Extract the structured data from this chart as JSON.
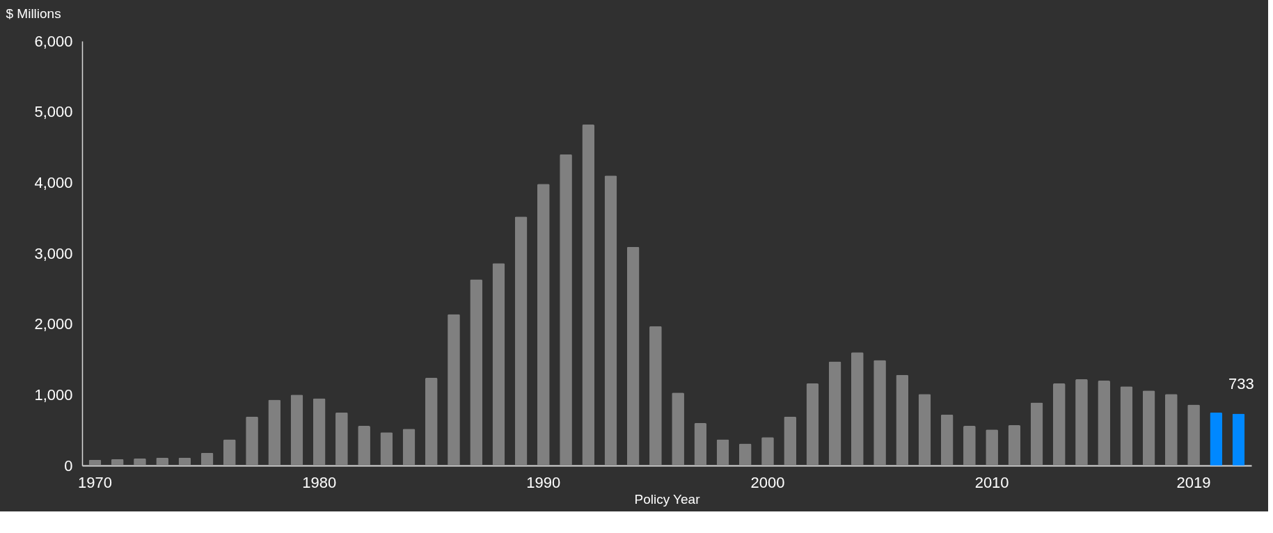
{
  "chart_data": {
    "type": "bar",
    "ylabel": "$ Millions",
    "xlabel": "Policy Year",
    "categories": [
      "1970",
      null,
      null,
      null,
      null,
      null,
      null,
      null,
      null,
      null,
      "1980",
      null,
      null,
      null,
      null,
      null,
      null,
      null,
      null,
      null,
      "1990",
      null,
      null,
      null,
      null,
      null,
      null,
      null,
      null,
      null,
      "2000",
      null,
      null,
      null,
      null,
      null,
      null,
      null,
      null,
      null,
      "2010",
      null,
      null,
      null,
      null,
      null,
      null,
      null,
      null,
      "2019",
      null,
      null
    ],
    "values": [
      80,
      90,
      100,
      110,
      110,
      180,
      370,
      690,
      930,
      1000,
      950,
      750,
      560,
      470,
      520,
      1240,
      2140,
      2630,
      2860,
      3520,
      3980,
      4400,
      4820,
      4100,
      3090,
      1970,
      1030,
      600,
      370,
      310,
      400,
      690,
      1160,
      1470,
      1600,
      1490,
      1280,
      1010,
      720,
      560,
      510,
      570,
      890,
      1160,
      1220,
      1200,
      1120,
      1060,
      1010,
      860,
      750,
      733
    ],
    "colors": [
      "#808080",
      "#808080",
      "#808080",
      "#808080",
      "#808080",
      "#808080",
      "#808080",
      "#808080",
      "#808080",
      "#808080",
      "#808080",
      "#808080",
      "#808080",
      "#808080",
      "#808080",
      "#808080",
      "#808080",
      "#808080",
      "#808080",
      "#808080",
      "#808080",
      "#808080",
      "#808080",
      "#808080",
      "#808080",
      "#808080",
      "#808080",
      "#808080",
      "#808080",
      "#808080",
      "#808080",
      "#808080",
      "#808080",
      "#808080",
      "#808080",
      "#808080",
      "#808080",
      "#808080",
      "#808080",
      "#808080",
      "#808080",
      "#808080",
      "#808080",
      "#808080",
      "#808080",
      "#808080",
      "#808080",
      "#808080",
      "#808080",
      "#808080",
      "#0088ff",
      "#0088ff"
    ],
    "value_labels": [
      null,
      null,
      null,
      null,
      null,
      null,
      null,
      null,
      null,
      null,
      null,
      null,
      null,
      null,
      null,
      null,
      null,
      null,
      null,
      null,
      null,
      null,
      null,
      null,
      null,
      null,
      null,
      null,
      null,
      null,
      null,
      null,
      null,
      null,
      null,
      null,
      null,
      null,
      null,
      null,
      null,
      null,
      null,
      null,
      null,
      null,
      null,
      null,
      null,
      null,
      null,
      "733"
    ],
    "ylim": [
      0,
      6000
    ],
    "yticks": [
      {
        "value": 0,
        "label": "0"
      },
      {
        "value": 1000,
        "label": "1,000"
      },
      {
        "value": 2000,
        "label": "2,000"
      },
      {
        "value": 3000,
        "label": "3,000"
      },
      {
        "value": 4000,
        "label": "4,000"
      },
      {
        "value": 5000,
        "label": "5,000"
      },
      {
        "value": 6000,
        "label": "6,000"
      }
    ],
    "grid": false
  }
}
